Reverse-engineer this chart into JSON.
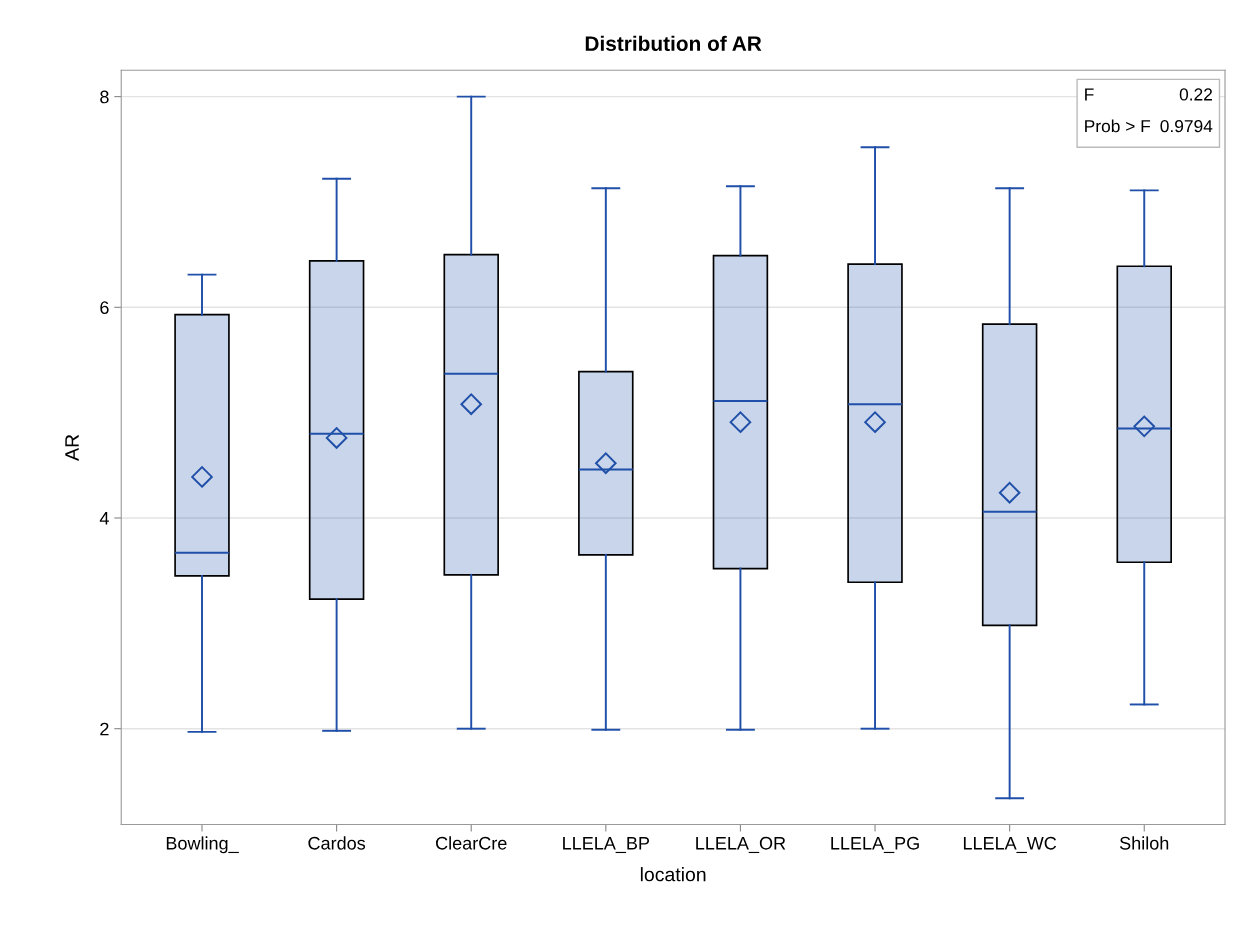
{
  "chart_data": {
    "type": "box",
    "title": "Distribution of AR",
    "xlabel": "location",
    "ylabel": "AR",
    "categories": [
      "Bowling_",
      "Cardos",
      "ClearCre",
      "LLELA_BP",
      "LLELA_OR",
      "LLELA_PG",
      "LLELA_WC",
      "Shiloh"
    ],
    "series": [
      {
        "color": "#1f4fa8",
        "boxes": [
          {
            "low": 1.97,
            "q1": 3.45,
            "median": 3.67,
            "q3": 5.93,
            "high": 6.31,
            "mean": 4.39
          },
          {
            "low": 1.98,
            "q1": 3.23,
            "median": 4.8,
            "q3": 6.44,
            "high": 7.22,
            "mean": 4.76
          },
          {
            "low": 2.0,
            "q1": 3.46,
            "median": 5.37,
            "q3": 6.5,
            "high": 8.0,
            "mean": 5.08
          },
          {
            "low": 1.99,
            "q1": 3.65,
            "median": 4.46,
            "q3": 5.39,
            "high": 7.13,
            "mean": 4.52
          },
          {
            "low": 1.99,
            "q1": 3.52,
            "median": 5.11,
            "q3": 6.49,
            "high": 7.15,
            "mean": 4.91
          },
          {
            "low": 2.0,
            "q1": 3.39,
            "median": 5.08,
            "q3": 6.41,
            "high": 7.52,
            "mean": 4.91
          },
          {
            "low": 1.34,
            "q1": 2.98,
            "median": 4.06,
            "q3": 5.84,
            "high": 7.13,
            "mean": 4.24
          },
          {
            "low": 2.23,
            "q1": 3.58,
            "median": 4.85,
            "q3": 6.39,
            "high": 7.11,
            "mean": 4.87
          }
        ]
      }
    ],
    "ylim": [
      1.09,
      8.25
    ],
    "yticks": [
      2,
      4,
      6,
      8
    ],
    "grid": "y",
    "marker": "diamond",
    "annotations": [
      "F",
      "0.22",
      "Prob > F",
      "0.9794"
    ]
  }
}
